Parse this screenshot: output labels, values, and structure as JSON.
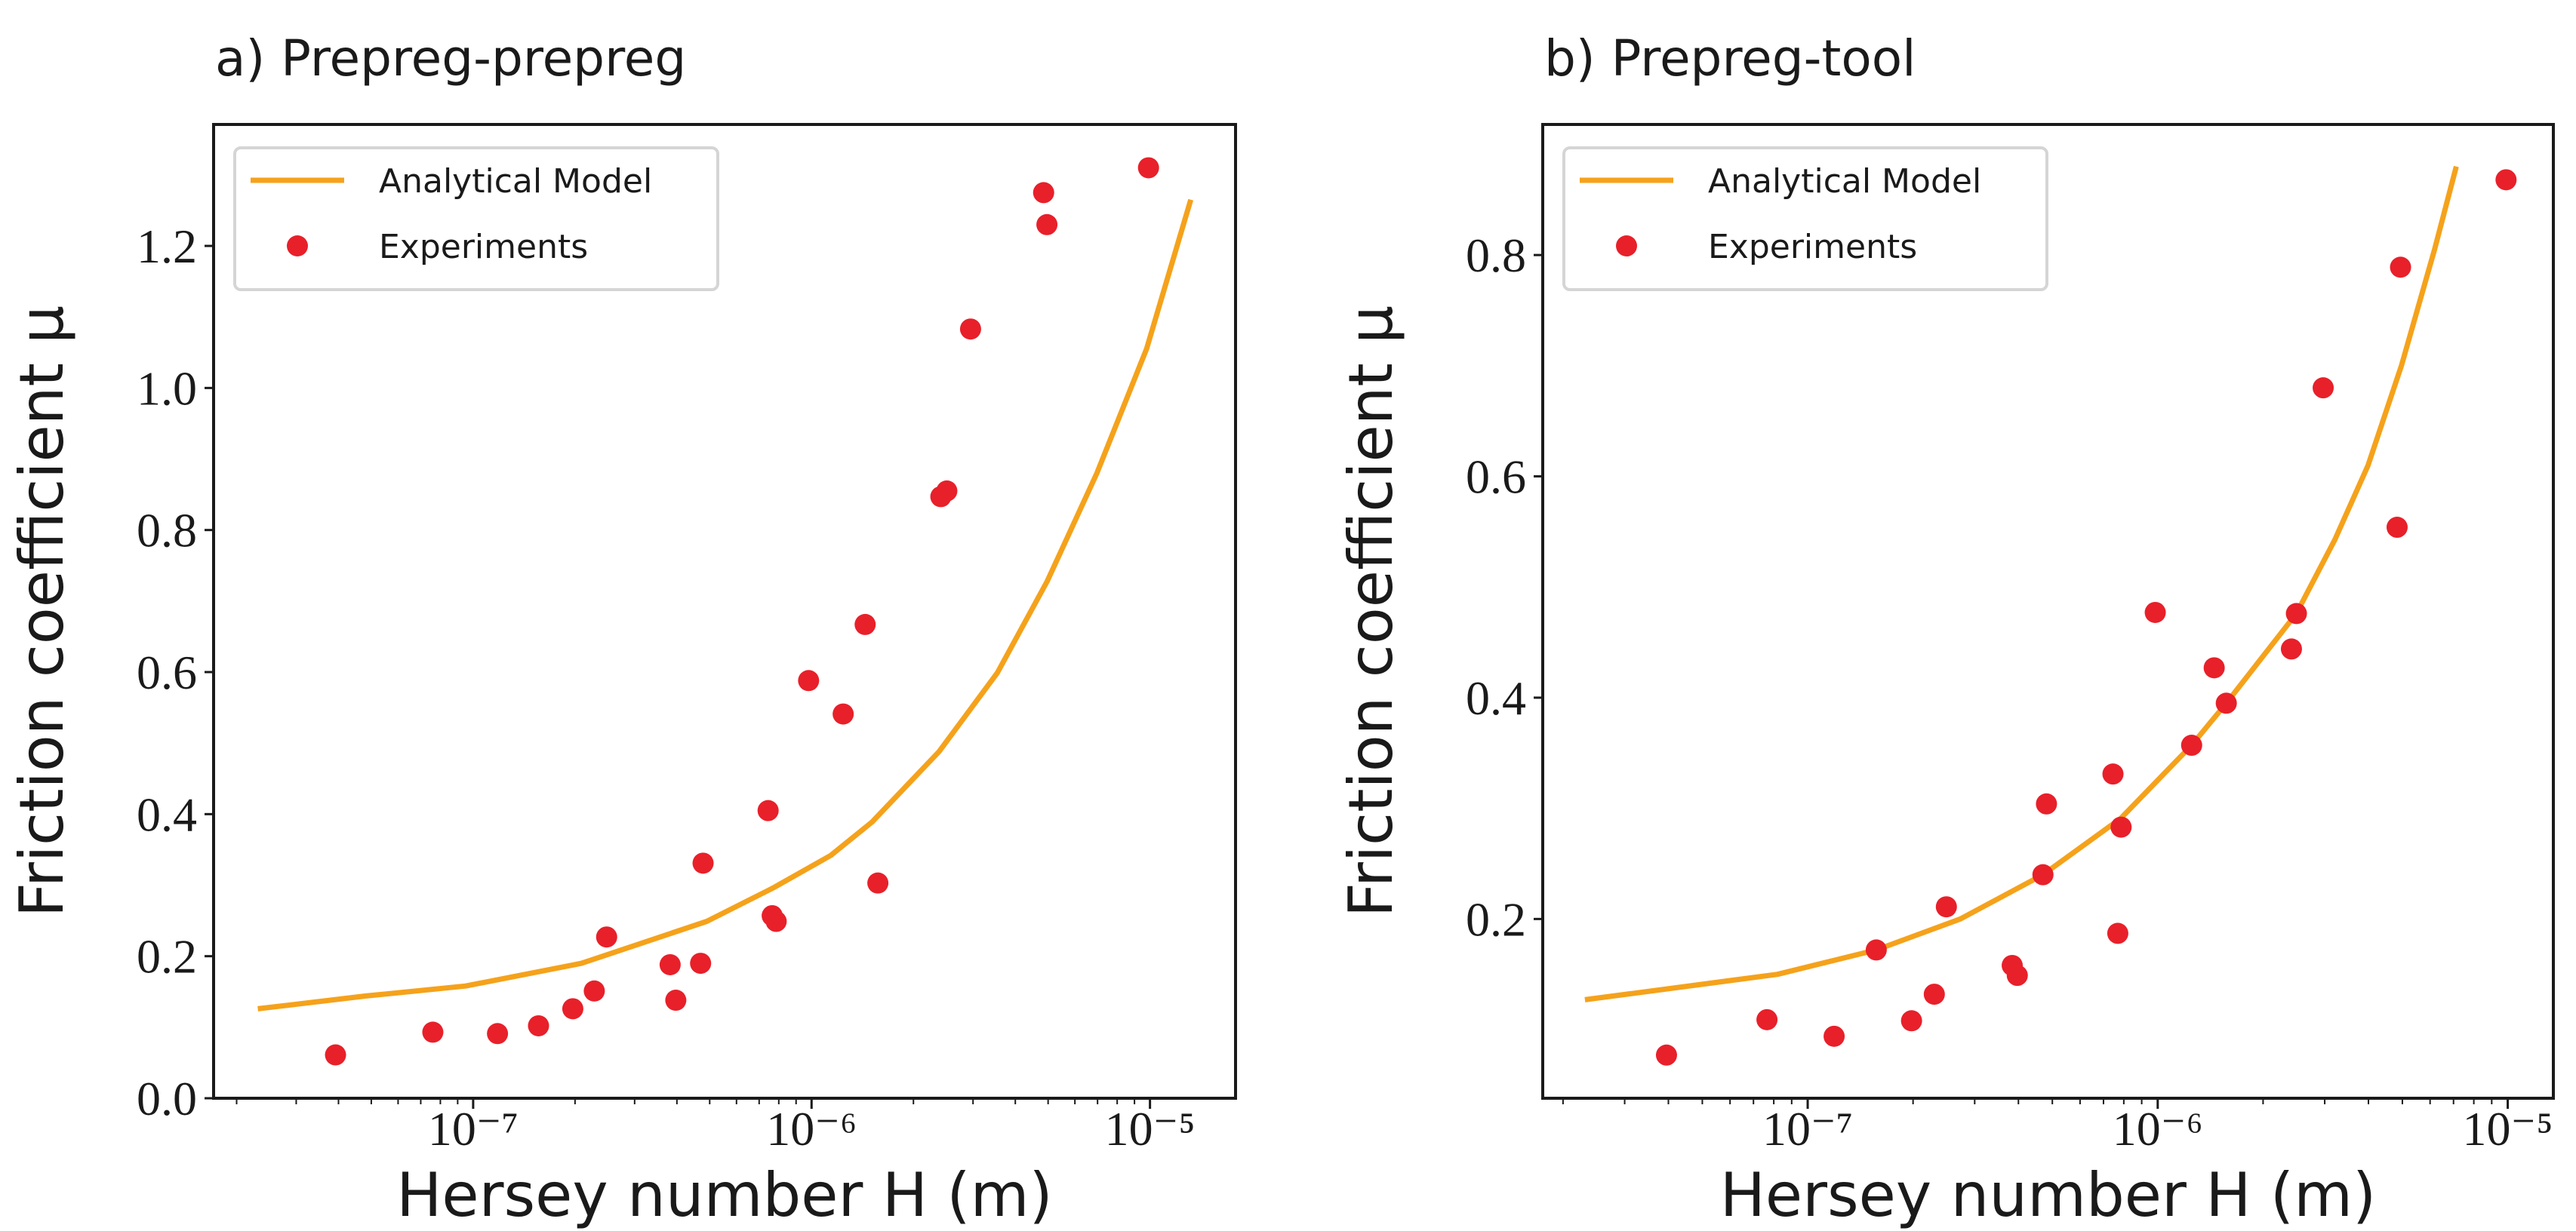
{
  "chart_data": [
    {
      "type": "scatter",
      "title": "a) Prepreg-prepreg",
      "xlabel": "Hersey number H (m)",
      "ylabel": "Friction coefficient μ",
      "xscale": "log",
      "xlim": [
        1.71e-08,
        1.79e-05
      ],
      "ylim": [
        0,
        1.371
      ],
      "xticks": [
        1e-07,
        1e-06,
        1e-05
      ],
      "xtick_labels": [
        "10⁻⁷",
        "10⁻⁶",
        "10⁻⁵"
      ],
      "yticks": [
        0.0,
        0.2,
        0.4,
        0.6,
        0.8,
        1.0,
        1.2
      ],
      "ytick_labels": [
        "0.0",
        "0.2",
        "0.4",
        "0.6",
        "0.8",
        "1.0",
        "1.2"
      ],
      "grid": false,
      "legend": {
        "position": "top-left",
        "entries": [
          "Analytical Model",
          "Experiments"
        ]
      },
      "series": [
        {
          "name": "Analytical Model",
          "kind": "line",
          "color": "#f5a21b",
          "x": [
            2.31e-08,
            4.82e-08,
            9.5e-08,
            2.09e-07,
            4.9e-07,
            7.69e-07,
            1.14e-06,
            1.51e-06,
            2.38e-06,
            3.54e-06,
            4.97e-06,
            6.97e-06,
            9.77e-06,
            1.32e-05
          ],
          "y": [
            0.126,
            0.144,
            0.158,
            0.19,
            0.249,
            0.296,
            0.342,
            0.389,
            0.488,
            0.599,
            0.728,
            0.88,
            1.055,
            1.265
          ]
        },
        {
          "name": "Experiments",
          "kind": "scatter",
          "color": "#e8202a",
          "x": [
            3.92e-08,
            7.6e-08,
            1.18e-07,
            1.56e-07,
            1.97e-07,
            2.28e-07,
            2.48e-07,
            3.82e-07,
            3.97e-07,
            4.7e-07,
            4.78e-07,
            7.44e-07,
            7.65e-07,
            7.86e-07,
            9.8e-07,
            1.24e-06,
            1.44e-06,
            1.57e-06,
            2.41e-06,
            2.51e-06,
            2.95e-06,
            4.85e-06,
            4.96e-06,
            9.9e-06
          ],
          "y": [
            0.061,
            0.093,
            0.091,
            0.102,
            0.126,
            0.151,
            0.227,
            0.188,
            0.138,
            0.19,
            0.331,
            0.405,
            0.257,
            0.249,
            0.588,
            0.541,
            0.667,
            0.303,
            0.847,
            0.855,
            1.083,
            1.275,
            1.23,
            1.31
          ]
        }
      ]
    },
    {
      "type": "scatter",
      "title": "b) Prepreg-tool",
      "xlabel": "Hersey number H (m)",
      "ylabel": "Friction coefficient μ",
      "xscale": "log",
      "xlim": [
        1.75e-08,
        1.35e-05
      ],
      "ylim": [
        0.038,
        0.918
      ],
      "xticks": [
        1e-07,
        1e-06,
        1e-05
      ],
      "xtick_labels": [
        "10⁻⁷",
        "10⁻⁶",
        "10⁻⁵"
      ],
      "yticks": [
        0.2,
        0.4,
        0.6,
        0.8
      ],
      "ytick_labels": [
        "0.2",
        "0.4",
        "0.6",
        "0.8"
      ],
      "grid": false,
      "legend": {
        "position": "top-left",
        "entries": [
          "Analytical Model",
          "Experiments"
        ]
      },
      "series": [
        {
          "name": "Analytical Model",
          "kind": "line",
          "color": "#f5a21b",
          "x": [
            2.31e-08,
            8.2e-08,
            1.57e-07,
            2.73e-07,
            4.7e-07,
            7.85e-07,
            1.25e-06,
            1.57e-06,
            2.49e-06,
            3.21e-06,
            3.99e-06,
            4.97e-06,
            6.18e-06,
            7.13e-06
          ],
          "y": [
            0.127,
            0.15,
            0.172,
            0.2,
            0.24,
            0.291,
            0.357,
            0.395,
            0.476,
            0.543,
            0.61,
            0.7,
            0.805,
            0.88
          ]
        },
        {
          "name": "Experiments",
          "kind": "scatter",
          "color": "#e8202a",
          "x": [
            3.95e-08,
            7.65e-08,
            1.19e-07,
            1.57e-07,
            1.98e-07,
            2.3e-07,
            2.49e-07,
            3.84e-07,
            3.97e-07,
            4.7e-07,
            4.81e-07,
            7.45e-07,
            7.69e-07,
            7.86e-07,
            9.84e-07,
            1.25e-06,
            1.45e-06,
            1.57e-06,
            2.41e-06,
            2.49e-06,
            2.97e-06,
            4.83e-06,
            4.94e-06,
            9.89e-06
          ],
          "y": [
            0.077,
            0.109,
            0.094,
            0.172,
            0.108,
            0.132,
            0.211,
            0.158,
            0.149,
            0.24,
            0.304,
            0.331,
            0.187,
            0.283,
            0.477,
            0.357,
            0.427,
            0.395,
            0.444,
            0.476,
            0.68,
            0.554,
            0.789,
            0.868
          ]
        }
      ]
    }
  ]
}
